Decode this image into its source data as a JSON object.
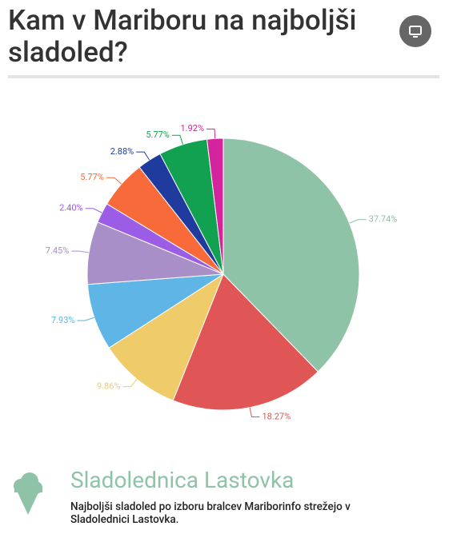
{
  "page": {
    "title": "Kam v Mariboru na najboljši sladoled?",
    "footer": {
      "heading": "Sladolednica Lastovka",
      "text": "Najboljši sladoled po izboru bralcev Mariborinfo strežejo v Sladolednici Lastovka."
    }
  },
  "chart_data": {
    "type": "pie",
    "values": [
      37.74,
      18.27,
      9.86,
      7.93,
      7.45,
      2.4,
      5.77,
      2.88,
      5.77,
      1.92
    ],
    "value_labels": [
      "37.74%",
      "18.27%",
      "9.86%",
      "7.93%",
      "7.45%",
      "2.40%",
      "5.77%",
      "2.88%",
      "5.77%",
      "1.92%"
    ],
    "colors": [
      "#8fc3a7",
      "#e05656",
      "#f0cb6a",
      "#5fb6e6",
      "#a98fc7",
      "#9b5de5",
      "#f96a3a",
      "#1f3b9e",
      "#12a150",
      "#d4239d"
    ]
  }
}
